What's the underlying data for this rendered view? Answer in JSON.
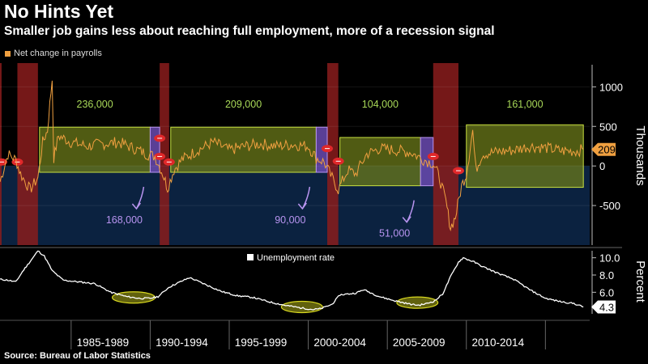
{
  "title": "No Hints Yet",
  "subtitle": "Smaller job gains less about reaching full employment, more of a recession signal",
  "source": "Source:  Bureau of Labor Statistics",
  "colors": {
    "payrolls": "#f0a040",
    "recession": "#8a1c1c",
    "expansion_box": "#6b7a1a",
    "expansion_box_border": "#c8e040",
    "late_box": "#6a4ab0",
    "below_fill": "#0b2240",
    "unemployment": "#ffffff",
    "annotation_green": "#a8d858",
    "annotation_purple": "#b894f0",
    "highlight_ellipse": "#d8d820",
    "marker_red": "#e0282a"
  },
  "chart_data": [
    {
      "type": "line",
      "name": "payrolls-panel",
      "legend": "Net change in payrolls",
      "legend_position": "top-left",
      "ylabel": "Thousands",
      "y_ticks": [
        1000,
        500,
        0,
        -500
      ],
      "y_tick_labels": [
        "1000",
        "500",
        "0",
        "-500"
      ],
      "ylim": [
        -1000,
        1300
      ],
      "xlim": [
        1980.5,
        2017.8
      ],
      "last_value": 209,
      "last_value_label": "209",
      "recessions": [
        [
          1980.0,
          1980.6
        ],
        [
          1981.6,
          1982.9
        ],
        [
          1990.6,
          1991.2
        ],
        [
          2001.2,
          2001.9
        ],
        [
          2007.9,
          2009.5
        ]
      ],
      "expansion_boxes": [
        {
          "x": [
            1983.0,
            1990.0
          ],
          "y": [
            -80,
            490
          ],
          "avg_label": "236,000",
          "avg": 236
        },
        {
          "x": [
            1991.3,
            2000.5
          ],
          "y": [
            -80,
            490
          ],
          "avg_label": "209,000",
          "avg": 209
        },
        {
          "x": [
            2002.0,
            2007.1
          ],
          "y": [
            -250,
            360
          ],
          "avg_label": "104,000",
          "avg": 104
        },
        {
          "x": [
            2010.0,
            2017.4
          ],
          "y": [
            -270,
            520
          ],
          "avg_label": "161,000",
          "avg": 161
        }
      ],
      "late_cycle_boxes": [
        {
          "x": [
            1990.0,
            1990.6
          ],
          "y": [
            -80,
            490
          ],
          "label": "168,000",
          "value": 168
        },
        {
          "x": [
            2000.5,
            2001.2
          ],
          "y": [
            -80,
            490
          ],
          "label": "90,000",
          "value": 90
        },
        {
          "x": [
            2007.1,
            2007.9
          ],
          "y": [
            -250,
            360
          ],
          "label": "51,000",
          "value": 51
        }
      ],
      "series": [
        {
          "name": "Net change in payrolls",
          "anchors": [
            [
              1980.5,
              -200
            ],
            [
              1981.0,
              150
            ],
            [
              1981.5,
              80
            ],
            [
              1981.8,
              -100
            ],
            [
              1982.4,
              -300
            ],
            [
              1982.9,
              -150
            ],
            [
              1983.2,
              300
            ],
            [
              1983.5,
              450
            ],
            [
              1983.8,
              1100
            ],
            [
              1983.9,
              100
            ],
            [
              1984.2,
              380
            ],
            [
              1985,
              300
            ],
            [
              1986,
              250
            ],
            [
              1987,
              280
            ],
            [
              1988,
              300
            ],
            [
              1989,
              220
            ],
            [
              1989.8,
              150
            ],
            [
              1990.3,
              120
            ],
            [
              1990.8,
              -100
            ],
            [
              1991.1,
              -280
            ],
            [
              1991.5,
              -50
            ],
            [
              1992,
              80
            ],
            [
              1993,
              200
            ],
            [
              1994,
              300
            ],
            [
              1995,
              200
            ],
            [
              1996,
              250
            ],
            [
              1997,
              280
            ],
            [
              1998,
              250
            ],
            [
              1999,
              270
            ],
            [
              2000.0,
              250
            ],
            [
              2000.5,
              100
            ],
            [
              2001.0,
              50
            ],
            [
              2001.5,
              -150
            ],
            [
              2001.9,
              -300
            ],
            [
              2002.5,
              -50
            ],
            [
              2003.0,
              -100
            ],
            [
              2003.7,
              150
            ],
            [
              2004.5,
              220
            ],
            [
              2005.5,
              200
            ],
            [
              2006.5,
              170
            ],
            [
              2007.2,
              90
            ],
            [
              2007.9,
              30
            ],
            [
              2008.3,
              -150
            ],
            [
              2008.7,
              -450
            ],
            [
              2009.0,
              -780
            ],
            [
              2009.3,
              -650
            ],
            [
              2009.7,
              -250
            ],
            [
              2010.0,
              -100
            ],
            [
              2010.4,
              450
            ],
            [
              2010.6,
              -50
            ],
            [
              2011,
              150
            ],
            [
              2012,
              180
            ],
            [
              2013,
              200
            ],
            [
              2014,
              250
            ],
            [
              2015,
              230
            ],
            [
              2016,
              190
            ],
            [
              2017.0,
              190
            ],
            [
              2017.4,
              209
            ]
          ]
        }
      ]
    },
    {
      "type": "line",
      "name": "unemployment-panel",
      "legend": "Unemployment rate",
      "legend_position": "top-center",
      "ylabel": "Percent",
      "y_ticks": [
        10.0,
        8.0,
        6.0
      ],
      "y_tick_labels": [
        "10.0",
        "8.0",
        "6.0"
      ],
      "ylim": [
        3.5,
        11.0
      ],
      "xlim": [
        1980.5,
        2017.8
      ],
      "last_value": 4.3,
      "last_value_label": "4.3",
      "x_labels": [
        "1985-1989",
        "1990-1994",
        "1995-1999",
        "2000-2004",
        "2005-2009",
        "2010-2014"
      ],
      "x_label_centers": [
        1987.0,
        1992.0,
        1997.0,
        2002.0,
        2007.0,
        2012.0
      ],
      "highlights": [
        {
          "x": [
            1987.6,
            1990.3
          ],
          "y": [
            4.8,
            6.0
          ]
        },
        {
          "x": [
            1998.3,
            2000.9
          ],
          "y": [
            3.8,
            4.8
          ]
        },
        {
          "x": [
            2005.6,
            2008.2
          ],
          "y": [
            4.3,
            5.3
          ]
        }
      ],
      "series": [
        {
          "name": "Unemployment rate",
          "anchors": [
            [
              1980.5,
              7.5
            ],
            [
              1981.0,
              7.4
            ],
            [
              1981.5,
              7.2
            ],
            [
              1982.0,
              8.6
            ],
            [
              1982.5,
              9.8
            ],
            [
              1982.9,
              10.8
            ],
            [
              1983.3,
              10.2
            ],
            [
              1983.8,
              8.5
            ],
            [
              1984.5,
              7.4
            ],
            [
              1985.5,
              7.2
            ],
            [
              1986.5,
              7.0
            ],
            [
              1987.5,
              6.0
            ],
            [
              1988.5,
              5.5
            ],
            [
              1989.3,
              5.3
            ],
            [
              1990.0,
              5.3
            ],
            [
              1990.5,
              5.5
            ],
            [
              1991.2,
              6.6
            ],
            [
              1992.0,
              7.3
            ],
            [
              1992.5,
              7.7
            ],
            [
              1993.5,
              6.9
            ],
            [
              1994.5,
              6.1
            ],
            [
              1995.5,
              5.6
            ],
            [
              1996.5,
              5.4
            ],
            [
              1997.5,
              4.9
            ],
            [
              1998.5,
              4.5
            ],
            [
              1999.5,
              4.2
            ],
            [
              2000.3,
              4.0
            ],
            [
              2000.8,
              4.1
            ],
            [
              2001.5,
              4.6
            ],
            [
              2002.0,
              5.7
            ],
            [
              2003.0,
              5.9
            ],
            [
              2003.5,
              6.3
            ],
            [
              2004.5,
              5.5
            ],
            [
              2005.5,
              5.0
            ],
            [
              2006.5,
              4.6
            ],
            [
              2007.0,
              4.5
            ],
            [
              2007.5,
              4.7
            ],
            [
              2008.0,
              5.0
            ],
            [
              2008.5,
              5.8
            ],
            [
              2009.0,
              7.8
            ],
            [
              2009.5,
              9.5
            ],
            [
              2009.8,
              10.0
            ],
            [
              2010.5,
              9.5
            ],
            [
              2011.0,
              9.0
            ],
            [
              2012.0,
              8.2
            ],
            [
              2013.0,
              7.5
            ],
            [
              2014.0,
              6.3
            ],
            [
              2015.0,
              5.3
            ],
            [
              2016.0,
              4.9
            ],
            [
              2016.8,
              4.7
            ],
            [
              2017.4,
              4.3
            ]
          ]
        }
      ]
    }
  ]
}
